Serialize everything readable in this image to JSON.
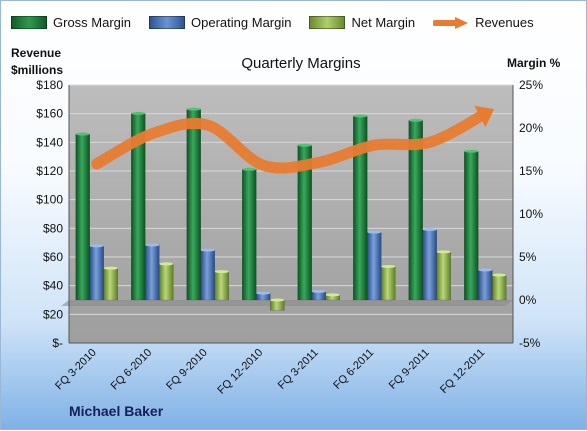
{
  "legend": {
    "gross": "Gross Margin",
    "operating": "Operating Margin",
    "net": "Net Margin",
    "revenues": "Revenues"
  },
  "colors": {
    "gross": "#1f7a3a",
    "operating": "#4a73b8",
    "net": "#8db04a",
    "revenues": "#e87b2f"
  },
  "author": "Michael Baker",
  "chart_data": {
    "type": "bar",
    "title": "Quarterly Margins",
    "ylabel_left_line1": "Revenue",
    "ylabel_left_line2": "$millions",
    "ylabel_right": "Margin %",
    "categories": [
      "FQ 3-2010",
      "FQ 6-2010",
      "FQ 9-2010",
      "FQ 12-2010",
      "FQ 3-2011",
      "FQ 6-2011",
      "FQ 9-2011",
      "FQ 12-2011"
    ],
    "series": [
      {
        "name": "Gross Margin",
        "axis": "right",
        "values": [
          19.3,
          21.7,
          22.2,
          15.2,
          18.0,
          21.4,
          20.9,
          17.3
        ]
      },
      {
        "name": "Operating Margin",
        "axis": "right",
        "values": [
          6.3,
          6.4,
          5.8,
          0.8,
          1.0,
          7.9,
          8.2,
          3.5
        ]
      },
      {
        "name": "Net Margin",
        "axis": "right",
        "values": [
          3.7,
          4.2,
          3.3,
          -1.2,
          0.6,
          3.9,
          5.6,
          2.9
        ]
      },
      {
        "name": "Revenues",
        "axis": "left",
        "type": "line",
        "values": [
          125,
          146,
          152,
          124,
          126,
          138,
          140,
          160
        ]
      }
    ],
    "ylim_left": [
      0,
      180
    ],
    "ylim_right": [
      -5,
      25
    ],
    "yticks_left": [
      "$-",
      "$20",
      "$40",
      "$60",
      "$80",
      "$100",
      "$120",
      "$140",
      "$160",
      "$180"
    ],
    "yticks_right": [
      "-5%",
      "0%",
      "5%",
      "10%",
      "15%",
      "20%",
      "25%"
    ],
    "grid": true,
    "legend_position": "top"
  }
}
